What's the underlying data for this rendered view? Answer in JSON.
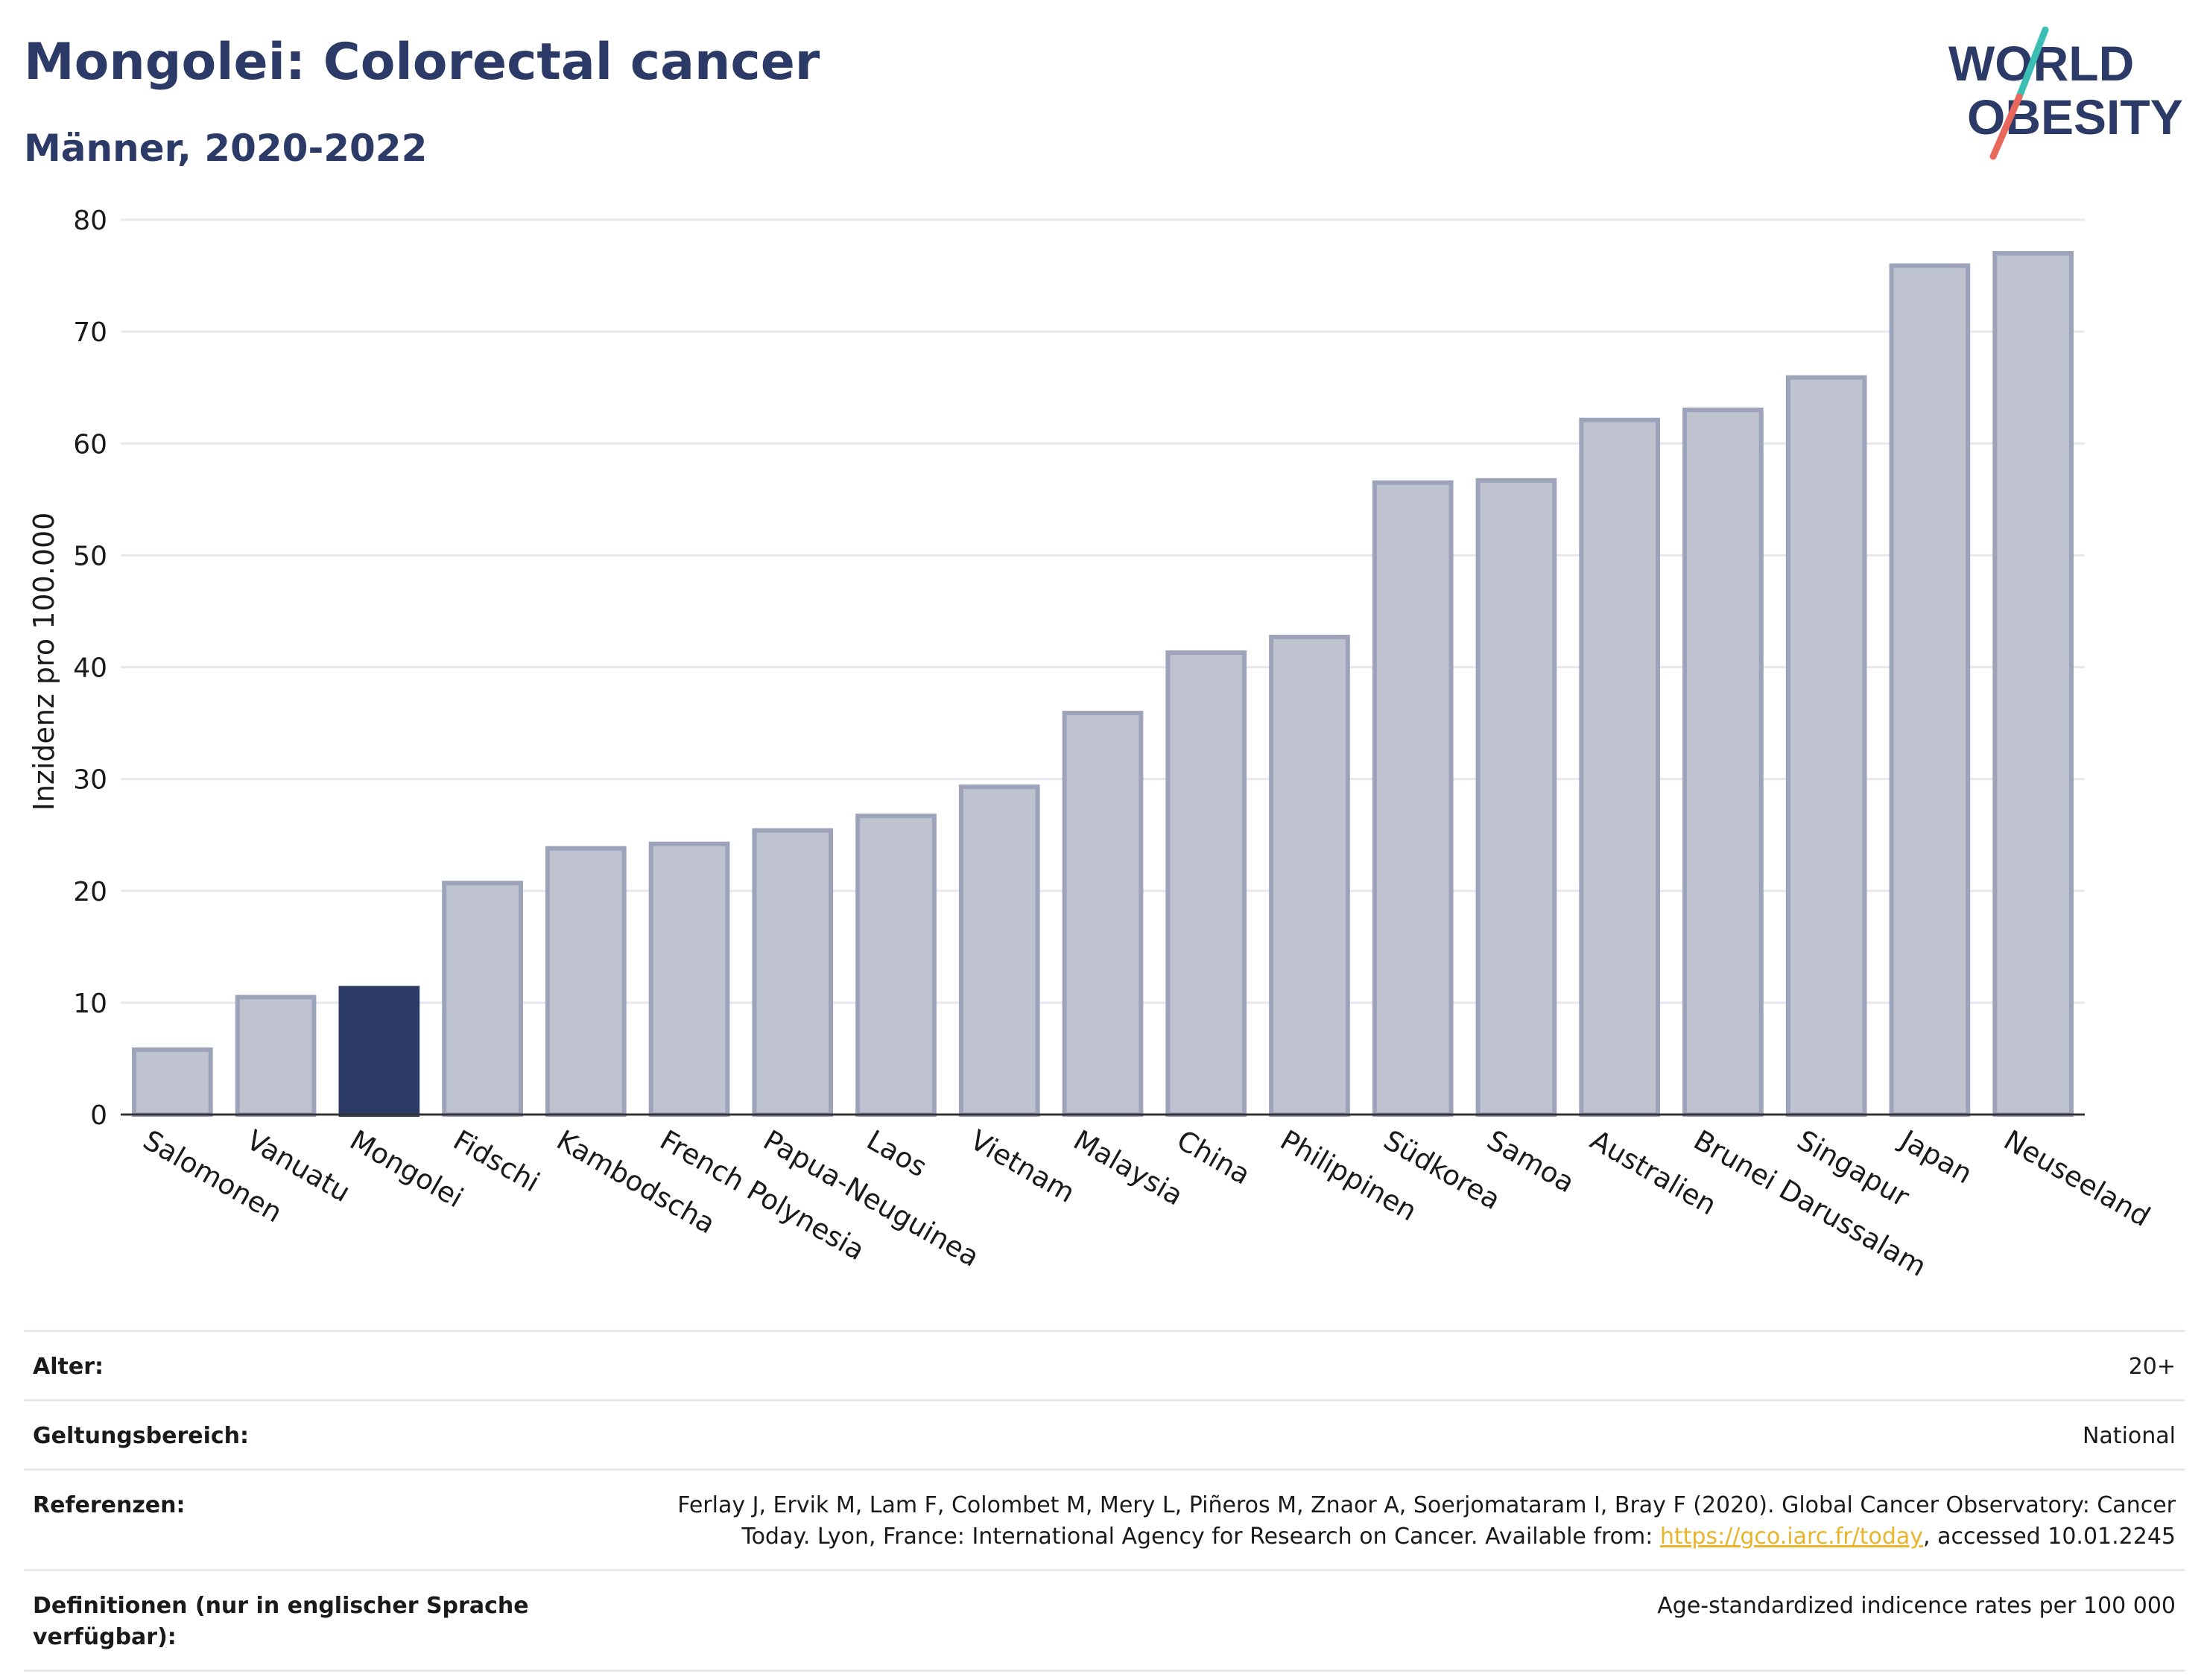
{
  "header": {
    "title": "Mongolei: Colorectal cancer",
    "subtitle": "Männer, 2020-2022"
  },
  "logo": {
    "line1": "WORLD",
    "line2": "OBESITY",
    "accent_teal": "#3bbfb4",
    "accent_red": "#e8685b",
    "text_color": "#2b3a67"
  },
  "chart_data": {
    "type": "bar",
    "ylabel": "Inzidenz pro 100.000",
    "ylim": [
      0,
      80
    ],
    "yticks": [
      0,
      10,
      20,
      30,
      40,
      50,
      60,
      70,
      80
    ],
    "grid": true,
    "highlight": "Mongolei",
    "colors": {
      "bar": "#bfc3d0",
      "bar_edge": "#9ca3ba",
      "highlight": "#2b3a67",
      "axis": "#333333",
      "grid": "#e6e8ef"
    },
    "categories": [
      "Salomonen",
      "Vanuatu",
      "Mongolei",
      "Fidschi",
      "Kambodscha",
      "French Polynesia",
      "Papua-Neuguinea",
      "Laos",
      "Vietnam",
      "Malaysia",
      "China",
      "Philippinen",
      "Südkorea",
      "Samoa",
      "Australien",
      "Brunei Darussalam",
      "Singapur",
      "Japan",
      "Neuseeland"
    ],
    "values": [
      5.8,
      10.5,
      11.3,
      20.7,
      23.8,
      24.2,
      25.4,
      26.7,
      29.3,
      35.9,
      41.3,
      42.7,
      56.5,
      56.7,
      62.1,
      63.0,
      65.9,
      75.9,
      77.0
    ]
  },
  "meta": {
    "age_label": "Alter:",
    "age_value": "20+",
    "scope_label": "Geltungsbereich:",
    "scope_value": "National",
    "refs_label": "Referenzen:",
    "refs_text_1": "Ferlay J, Ervik M, Lam F, Colombet M, Mery L, Piñeros M, Znaor A, Soerjomataram I, Bray F (2020). Global Cancer Observatory: Cancer Today. Lyon, France: International Agency for Research on Cancer. Available from: ",
    "refs_link": "https://gco.iarc.fr/today",
    "refs_text_2": ", accessed 10.01.2245",
    "defs_label": "Definitionen (nur in englischer Sprache verfügbar):",
    "defs_value": "Age-standardized indicence rates per 100 000"
  }
}
